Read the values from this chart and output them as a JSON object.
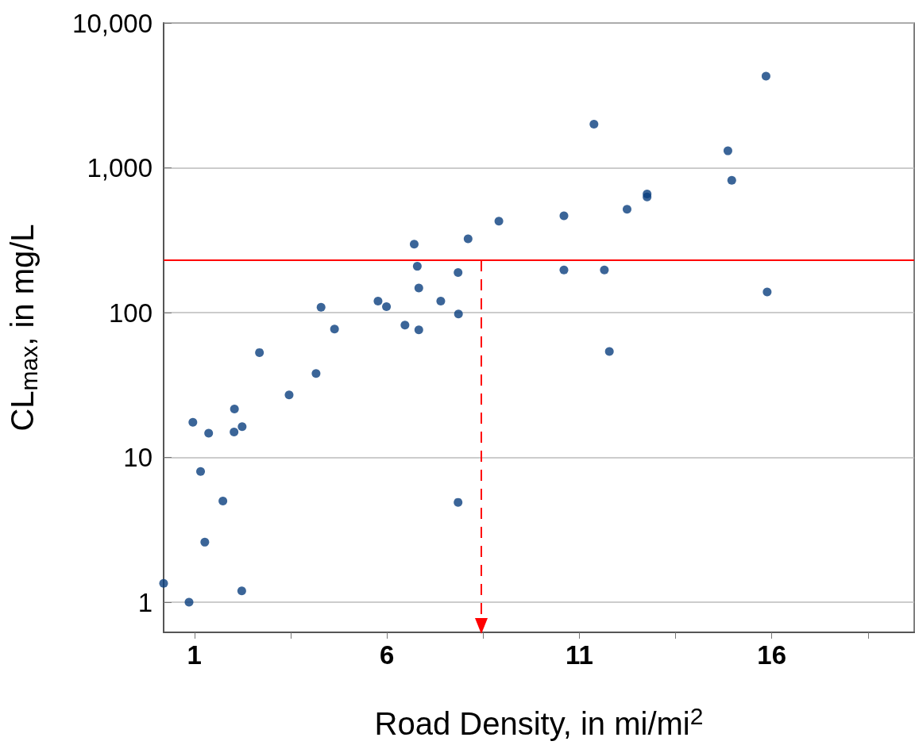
{
  "chart_data": {
    "type": "scatter",
    "xlabel": "Road Density, in mi/mi$^{2}$",
    "ylabel": "CL$_{max}$, in mg/L",
    "log": "y",
    "grid": "y",
    "marker": "circle",
    "xlim": [
      0.2,
      19.7
    ],
    "xticks": [
      1,
      {
        "value": 3.5,
        "label": null
      },
      6,
      {
        "value": 8.5,
        "label": null
      },
      11,
      {
        "value": 13.5,
        "label": null
      },
      16,
      {
        "value": 18.5,
        "label": null
      }
    ],
    "ylim": [
      0.62,
      10000
    ],
    "yticks": [
      1,
      10,
      100,
      {
        "value": 1000,
        "label": "1,000"
      },
      {
        "value": 10000,
        "label": "10,000"
      }
    ],
    "ref_lines": [
      {
        "axis": "y",
        "value": 230,
        "color": "#ff0000",
        "line_style": "solid"
      },
      {
        "axis": "x",
        "value": 8.45,
        "color": "#ff0000",
        "line_style": "dashed"
      }
    ],
    "series": [
      {
        "color": "#0a3f7e",
        "x": [
          0.2,
          0.86,
          0.96,
          1.16,
          1.27,
          1.37,
          1.74,
          2.03,
          2.04,
          2.23,
          2.24,
          2.69,
          3.46,
          4.16,
          4.29,
          4.64,
          5.77,
          5.99,
          6.47,
          6.71,
          6.79,
          6.83,
          6.83,
          7.4,
          7.85,
          7.85,
          7.86,
          8.11,
          8.91,
          10.6,
          10.6,
          11.38,
          11.65,
          11.78,
          12.24,
          12.76,
          12.76,
          14.86,
          14.96,
          15.85,
          15.88
        ],
        "values": [
          1.35,
          1.0,
          17.5,
          8,
          2.6,
          14.7,
          5,
          15,
          21.6,
          1.2,
          16.3,
          53,
          27,
          38,
          109,
          77,
          120,
          110,
          82,
          297,
          209,
          148,
          76,
          120,
          189,
          4.9,
          98,
          323,
          428,
          466,
          197,
          2000,
          197,
          54,
          517,
          660,
          630,
          1310,
          820,
          4300,
          139
        ]
      }
    ]
  }
}
